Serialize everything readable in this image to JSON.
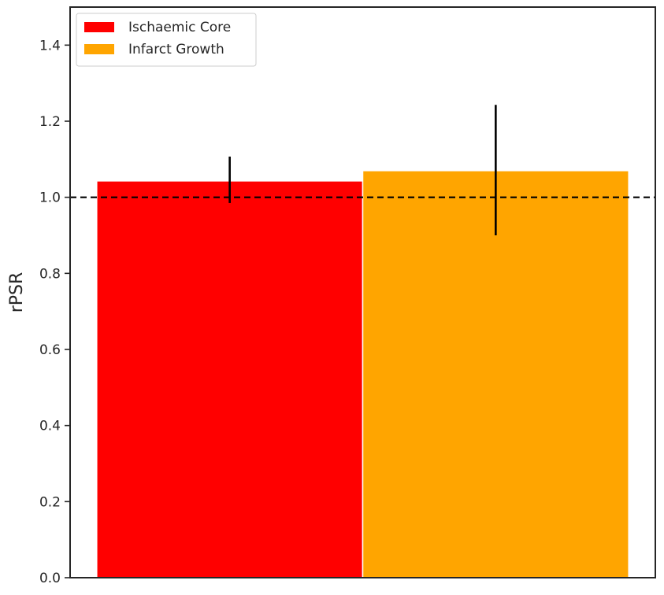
{
  "chart_data": {
    "type": "bar",
    "title": "",
    "xlabel": "",
    "ylabel": "rPSR",
    "ylim": [
      0,
      1.5
    ],
    "yticks": [
      0.0,
      0.2,
      0.4,
      0.6,
      0.8,
      1.0,
      1.2,
      1.4
    ],
    "ytick_labels": [
      "0.0",
      "0.2",
      "0.4",
      "0.6",
      "0.8",
      "1.0",
      "1.2",
      "1.4"
    ],
    "grid": false,
    "legend_position": "top-left",
    "reference_line": {
      "y": 1.0,
      "style": "dashed",
      "color": "#000000"
    },
    "series": [
      {
        "name": "Ischaemic Core",
        "value": 1.043,
        "error_low": 0.985,
        "error_high": 1.107,
        "color": "#ff0000"
      },
      {
        "name": "Infarct Growth",
        "value": 1.07,
        "error_low": 0.9,
        "error_high": 1.243,
        "color": "#ffa500"
      }
    ]
  }
}
